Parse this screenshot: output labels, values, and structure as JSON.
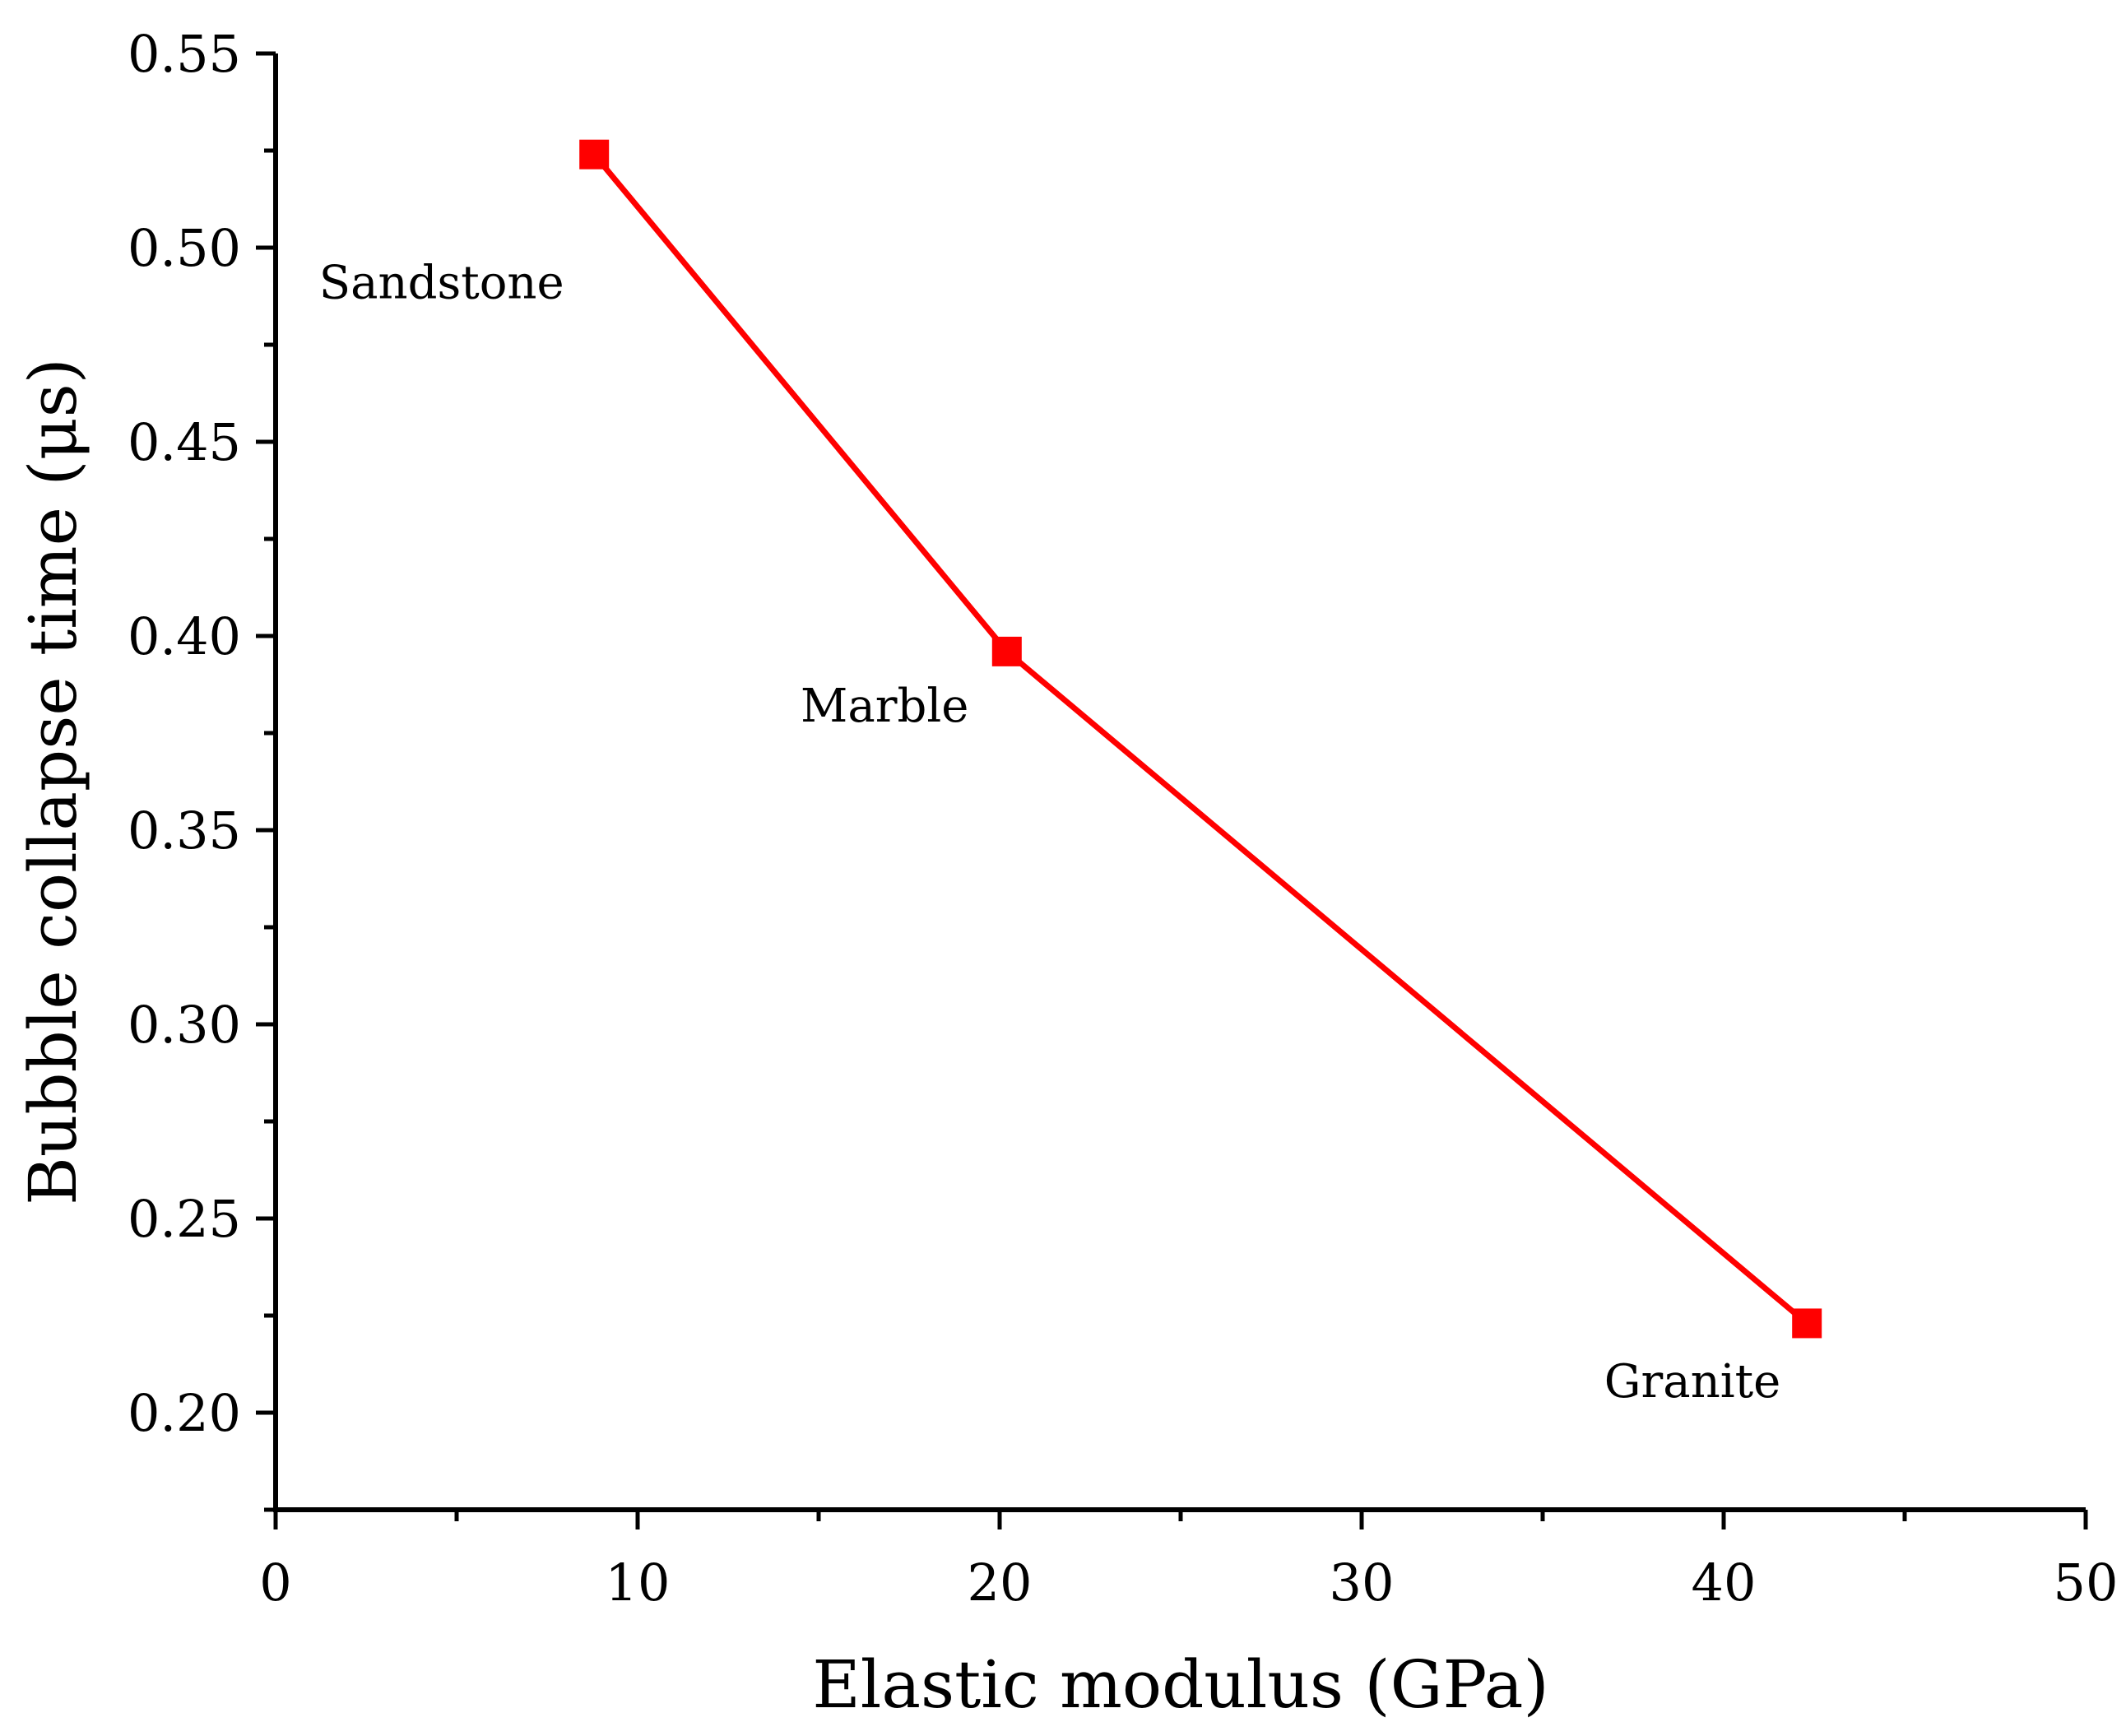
{
  "chart_data": {
    "type": "line",
    "title": "",
    "xlabel": "Elastic modulus (GPa)",
    "ylabel": "Bubble collapse time (μs)",
    "xlim": [
      0,
      50
    ],
    "ylim": [
      0.175,
      0.55
    ],
    "x_ticks": [
      0,
      10,
      20,
      30,
      40,
      50
    ],
    "y_ticks": [
      0.2,
      0.25,
      0.3,
      0.35,
      0.4,
      0.45,
      0.5,
      0.55
    ],
    "x_tick_labels": [
      "0",
      "10",
      "20",
      "30",
      "40",
      "50"
    ],
    "y_tick_labels": [
      "0.20",
      "0.25",
      "0.30",
      "0.35",
      "0.40",
      "0.45",
      "0.50",
      "0.55"
    ],
    "grid": false,
    "legend": "none",
    "series": [
      {
        "color": "#ff0000",
        "marker": "square",
        "x": [
          8.8,
          20.2,
          42.3
        ],
        "y": [
          0.524,
          0.396,
          0.223
        ]
      }
    ],
    "annotations": [
      {
        "text": "Sandstone",
        "x": 1.2,
        "y": 0.487
      },
      {
        "text": "Marble",
        "x": 14.5,
        "y": 0.378
      },
      {
        "text": "Granite",
        "x": 36.7,
        "y": 0.204
      }
    ]
  }
}
